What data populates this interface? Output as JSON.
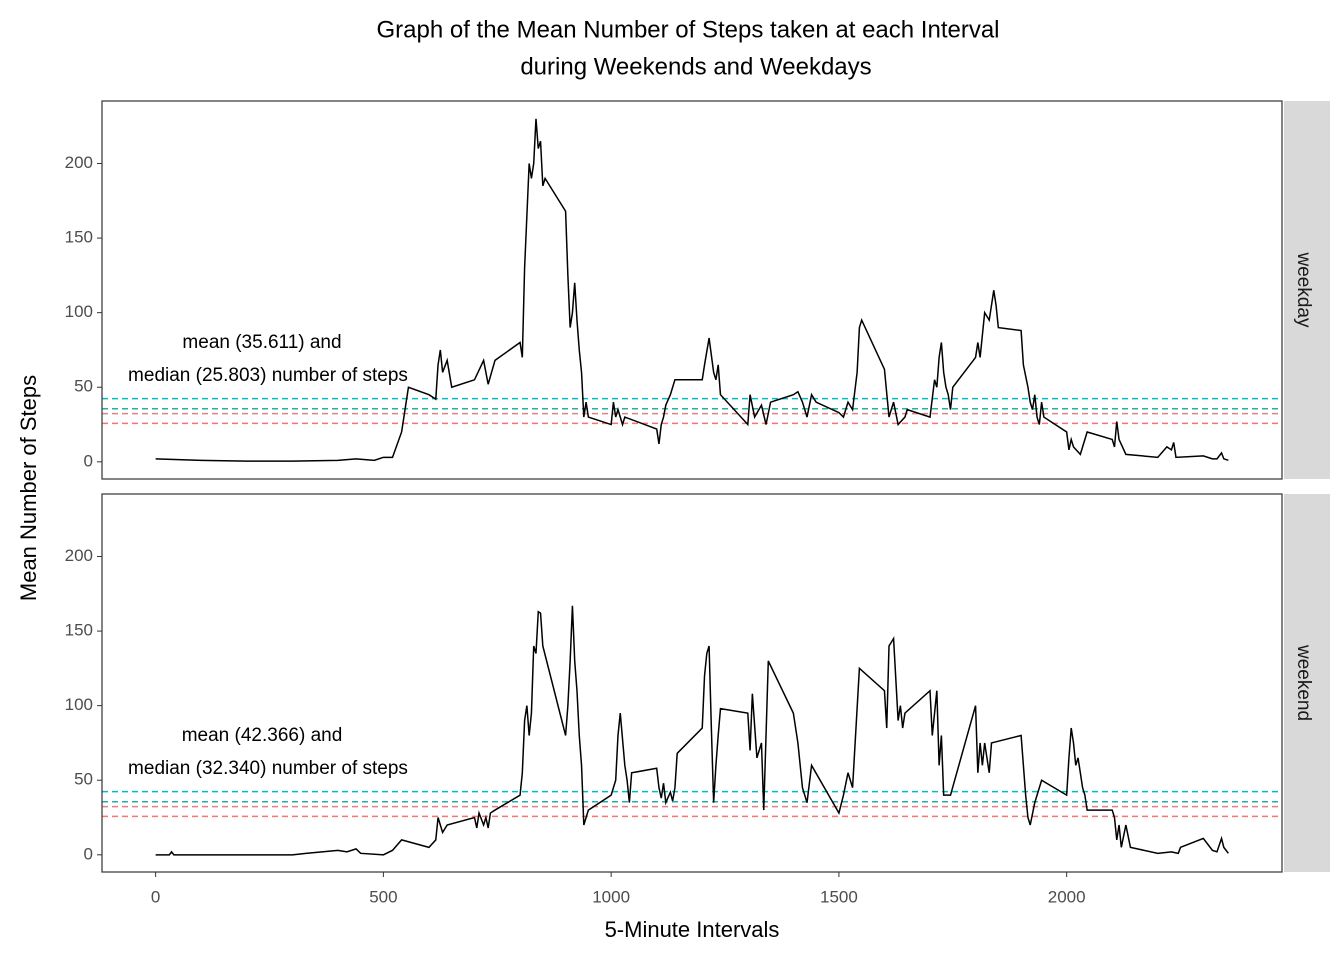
{
  "title": [
    "Graph of the Mean Number of Steps taken at each Interval",
    "during Weekends and Weekdays"
  ],
  "xlabel": "5-Minute Intervals",
  "ylabel": "Mean Number of Steps",
  "chart_data": [
    {
      "type": "line",
      "facet": "weekday",
      "annotation": [
        "mean (35.611) and",
        "median (25.803) number of steps"
      ],
      "xlim": [
        -117.75,
        2472.75
      ],
      "ylim": [
        -11.52,
        241.9
      ],
      "yticks": [
        0,
        50,
        100,
        150,
        200
      ],
      "hlines": [
        {
          "value": 42.366,
          "color": "#00BFC4"
        },
        {
          "value": 35.611,
          "color": "#20B2AA"
        },
        {
          "value": 32.34,
          "color": "#E58080"
        },
        {
          "value": 25.803,
          "color": "#F8766D"
        }
      ],
      "x": [
        0,
        100,
        200,
        300,
        400,
        440,
        480,
        500,
        520,
        540,
        550,
        555,
        600,
        615,
        620,
        625,
        630,
        640,
        650,
        700,
        720,
        730,
        745,
        800,
        805,
        810,
        820,
        825,
        830,
        835,
        840,
        845,
        850,
        855,
        900,
        905,
        910,
        915,
        920,
        925,
        930,
        935,
        940,
        945,
        950,
        1000,
        1005,
        1010,
        1015,
        1025,
        1030,
        1100,
        1105,
        1110,
        1115,
        1120,
        1130,
        1140,
        1200,
        1205,
        1215,
        1225,
        1230,
        1235,
        1240,
        1300,
        1305,
        1315,
        1330,
        1340,
        1350,
        1400,
        1410,
        1420,
        1430,
        1440,
        1450,
        1500,
        1510,
        1520,
        1530,
        1540,
        1545,
        1550,
        1600,
        1610,
        1620,
        1630,
        1645,
        1650,
        1700,
        1710,
        1715,
        1720,
        1725,
        1730,
        1735,
        1740,
        1745,
        1750,
        1800,
        1805,
        1810,
        1815,
        1820,
        1830,
        1840,
        1845,
        1850,
        1900,
        1905,
        1915,
        1920,
        1925,
        1930,
        1935,
        1940,
        1945,
        1950,
        2000,
        2005,
        2010,
        2015,
        2030,
        2045,
        2100,
        2105,
        2110,
        2115,
        2130,
        2200,
        2220,
        2230,
        2235,
        2240,
        2300,
        2320,
        2330,
        2340,
        2345,
        2355
      ],
      "series": [
        {
          "color": "#000000",
          "values": [
            2,
            1,
            0.5,
            0.5,
            1,
            2,
            1,
            3,
            3,
            20,
            40,
            50,
            45,
            42,
            65,
            75,
            60,
            68,
            50,
            55,
            68,
            52,
            68,
            80,
            70,
            130,
            200,
            190,
            200,
            230,
            210,
            215,
            185,
            190,
            168,
            125,
            90,
            100,
            120,
            95,
            75,
            60,
            30,
            40,
            30,
            25,
            40,
            30,
            35,
            25,
            30,
            22,
            12,
            25,
            30,
            38,
            45,
            55,
            55,
            65,
            83,
            60,
            55,
            65,
            45,
            25,
            45,
            30,
            38,
            25,
            40,
            45,
            47,
            40,
            30,
            45,
            40,
            33,
            30,
            40,
            35,
            60,
            90,
            95,
            62,
            30,
            40,
            25,
            30,
            35,
            30,
            55,
            50,
            70,
            80,
            60,
            50,
            45,
            35,
            50,
            70,
            80,
            70,
            85,
            100,
            95,
            115,
            105,
            90,
            88,
            65,
            50,
            40,
            35,
            45,
            30,
            25,
            40,
            30,
            20,
            8,
            15,
            10,
            5,
            20,
            15,
            10,
            27,
            15,
            5,
            3,
            10,
            8,
            13,
            3,
            4,
            2,
            2,
            6,
            2,
            1
          ]
        }
      ]
    },
    {
      "type": "line",
      "facet": "weekend",
      "annotation": [
        "mean (42.366) and",
        "median (32.340) number of steps"
      ],
      "xlim": [
        -117.75,
        2472.75
      ],
      "ylim": [
        -11.52,
        241.9
      ],
      "yticks": [
        0,
        50,
        100,
        150,
        200
      ],
      "xticks": [
        0,
        500,
        1000,
        1500,
        2000
      ],
      "hlines": [
        {
          "value": 42.366,
          "color": "#00BFC4"
        },
        {
          "value": 35.611,
          "color": "#20B2AA"
        },
        {
          "value": 32.34,
          "color": "#E58080"
        },
        {
          "value": 25.803,
          "color": "#F8766D"
        }
      ],
      "x": [
        0,
        30,
        35,
        40,
        100,
        200,
        300,
        330,
        400,
        420,
        440,
        450,
        500,
        520,
        540,
        600,
        615,
        620,
        630,
        640,
        700,
        705,
        710,
        720,
        725,
        730,
        735,
        745,
        800,
        805,
        810,
        815,
        820,
        825,
        830,
        835,
        840,
        845,
        850,
        900,
        905,
        910,
        915,
        920,
        925,
        930,
        935,
        940,
        945,
        950,
        1000,
        1010,
        1015,
        1020,
        1030,
        1035,
        1040,
        1045,
        1100,
        1105,
        1110,
        1115,
        1120,
        1130,
        1135,
        1140,
        1145,
        1200,
        1205,
        1210,
        1215,
        1220,
        1225,
        1230,
        1235,
        1240,
        1300,
        1305,
        1310,
        1320,
        1330,
        1335,
        1345,
        1400,
        1410,
        1420,
        1430,
        1440,
        1500,
        1510,
        1520,
        1530,
        1545,
        1600,
        1605,
        1610,
        1620,
        1630,
        1635,
        1640,
        1645,
        1700,
        1705,
        1710,
        1715,
        1720,
        1725,
        1730,
        1745,
        1800,
        1805,
        1810,
        1815,
        1820,
        1830,
        1835,
        1900,
        1905,
        1910,
        1915,
        1920,
        1930,
        1945,
        2000,
        2005,
        2010,
        2015,
        2020,
        2025,
        2030,
        2035,
        2040,
        2045,
        2100,
        2105,
        2110,
        2115,
        2120,
        2130,
        2140,
        2200,
        2230,
        2245,
        2250,
        2300,
        2320,
        2330,
        2340,
        2345,
        2355
      ],
      "series": [
        {
          "color": "#000000",
          "values": [
            0,
            0,
            2,
            0,
            0,
            0,
            0,
            1,
            3,
            2,
            4,
            1,
            0,
            3,
            10,
            5,
            10,
            25,
            15,
            20,
            25,
            18,
            28,
            20,
            25,
            18,
            28,
            30,
            40,
            55,
            90,
            100,
            80,
            95,
            140,
            135,
            163,
            162,
            140,
            80,
            100,
            130,
            167,
            130,
            110,
            80,
            60,
            20,
            25,
            30,
            40,
            50,
            80,
            95,
            60,
            50,
            35,
            55,
            58,
            45,
            38,
            48,
            35,
            42,
            36,
            45,
            68,
            85,
            120,
            135,
            140,
            85,
            35,
            60,
            80,
            98,
            95,
            70,
            108,
            65,
            75,
            30,
            130,
            95,
            75,
            45,
            35,
            60,
            28,
            40,
            55,
            45,
            125,
            110,
            85,
            140,
            145,
            90,
            100,
            85,
            95,
            110,
            80,
            95,
            110,
            60,
            80,
            40,
            40,
            100,
            55,
            75,
            60,
            75,
            55,
            75,
            80,
            60,
            40,
            25,
            20,
            35,
            50,
            40,
            65,
            85,
            75,
            60,
            65,
            55,
            45,
            40,
            30,
            30,
            25,
            10,
            20,
            5,
            20,
            5,
            1,
            2,
            1,
            5,
            11,
            3,
            2,
            11,
            5,
            1
          ]
        }
      ]
    }
  ]
}
